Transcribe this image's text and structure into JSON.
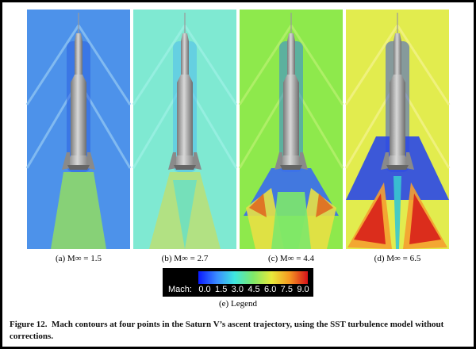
{
  "panels": [
    {
      "caption": "(a) M∞ = 1.5"
    },
    {
      "caption": "(b) M∞ = 2.7"
    },
    {
      "caption": "(c) M∞ = 4.4"
    },
    {
      "caption": "(d) M∞ = 6.5"
    }
  ],
  "legend": {
    "label": "Mach:",
    "ticks": [
      "0.0",
      "1.5",
      "3.0",
      "4.5",
      "6.0",
      "7.5",
      "9.0"
    ],
    "caption": "(e) Legend"
  },
  "caption": {
    "label": "Figure 12.",
    "text": "Mach contours at four points in the Saturn V’s ascent trajectory, using the SST turbulence model without corrections."
  }
}
